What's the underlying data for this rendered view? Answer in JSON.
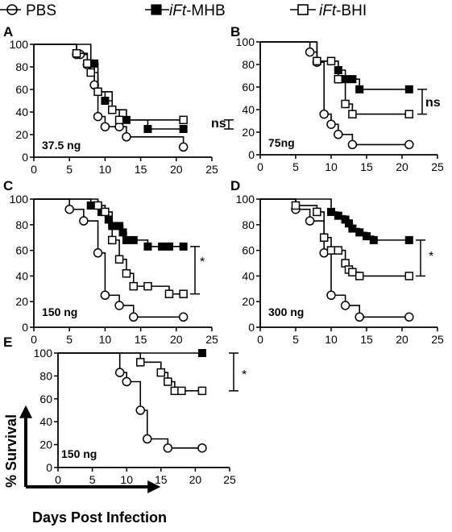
{
  "legend": [
    {
      "label": "PBS",
      "marker": "open-circle",
      "icon": "open-circle-marker-icon"
    },
    {
      "label": "iFt-MHB",
      "label_italic": "iFt",
      "label_rest": "-MHB",
      "marker": "filled-square",
      "icon": "filled-square-marker-icon"
    },
    {
      "label": "iFt-BHI",
      "label_italic": "iFt",
      "label_rest": "-BHI",
      "marker": "open-square",
      "icon": "open-square-marker-icon"
    }
  ],
  "axis_labels": {
    "y": "% Survival",
    "x": "Days Post Infection"
  },
  "colors": {
    "line": "#000000",
    "marker_fill_filled": "#000000",
    "marker_fill_open": "#ffffff"
  },
  "chart_data": [
    {
      "type": "line",
      "step": true,
      "panel": "A",
      "dose": "37.5 ng",
      "xlim": [
        0,
        25
      ],
      "ylim": [
        0,
        100
      ],
      "xticks": [
        0,
        5,
        10,
        15,
        20,
        25
      ],
      "yticks": [
        0,
        20,
        40,
        60,
        80,
        100
      ],
      "series": [
        {
          "name": "PBS",
          "marker": "open-circle",
          "x": [
            0,
            6,
            6.5,
            7.5,
            8.5,
            9,
            10,
            12,
            13,
            21
          ],
          "y": [
            100,
            91,
            91,
            82,
            64,
            36,
            27,
            27,
            18,
            9
          ]
        },
        {
          "name": "iFt-MHB",
          "marker": "filled-square",
          "x": [
            0,
            8,
            8.5,
            9,
            10,
            11,
            13,
            16,
            21
          ],
          "y": [
            100,
            83,
            83,
            58,
            50,
            42,
            33,
            25,
            25
          ]
        },
        {
          "name": "iFt-BHI",
          "marker": "open-square",
          "x": [
            0,
            6,
            7.5,
            8,
            9,
            11,
            12,
            21
          ],
          "y": [
            100,
            92,
            83,
            75,
            58,
            42,
            33,
            33
          ]
        }
      ],
      "significance": "ns"
    },
    {
      "type": "line",
      "step": true,
      "panel": "B",
      "dose": "75ng",
      "xlim": [
        0,
        25
      ],
      "ylim": [
        0,
        100
      ],
      "xticks": [
        0,
        5,
        10,
        15,
        20,
        25
      ],
      "yticks": [
        0,
        20,
        40,
        60,
        80,
        100
      ],
      "series": [
        {
          "name": "PBS",
          "marker": "open-circle",
          "x": [
            0,
            7,
            8,
            9,
            10,
            11,
            13,
            21
          ],
          "y": [
            100,
            91,
            82,
            36,
            27,
            18,
            9,
            9
          ]
        },
        {
          "name": "iFt-MHB",
          "marker": "filled-square",
          "x": [
            0,
            8,
            10,
            11,
            12,
            13,
            14,
            21
          ],
          "y": [
            100,
            83,
            83,
            75,
            67,
            67,
            58,
            58
          ]
        },
        {
          "name": "iFt-BHI",
          "marker": "open-square",
          "x": [
            0,
            8,
            10,
            11,
            12,
            13,
            21
          ],
          "y": [
            100,
            83,
            83,
            67,
            45,
            36,
            36
          ]
        }
      ],
      "significance": "ns"
    },
    {
      "type": "line",
      "step": true,
      "panel": "C",
      "dose": "150 ng",
      "xlim": [
        0,
        25
      ],
      "ylim": [
        0,
        100
      ],
      "xticks": [
        0,
        5,
        10,
        15,
        20,
        25
      ],
      "yticks": [
        0,
        20,
        40,
        60,
        80,
        100
      ],
      "series": [
        {
          "name": "PBS",
          "marker": "open-circle",
          "x": [
            0,
            5,
            7,
            9,
            10,
            12,
            14,
            21
          ],
          "y": [
            100,
            92,
            83,
            58,
            25,
            17,
            8,
            8
          ]
        },
        {
          "name": "iFt-MHB",
          "marker": "filled-square",
          "x": [
            0,
            8,
            9,
            9.5,
            10.5,
            11,
            12,
            12.5,
            13,
            14,
            16,
            18,
            19,
            21
          ],
          "y": [
            100,
            95,
            95,
            90,
            84,
            79,
            79,
            74,
            68,
            68,
            63,
            63,
            63,
            63
          ]
        },
        {
          "name": "iFt-BHI",
          "marker": "open-square",
          "x": [
            0,
            9,
            10,
            11,
            12,
            13,
            14,
            16,
            19,
            21
          ],
          "y": [
            100,
            95,
            90,
            68,
            53,
            42,
            32,
            32,
            26,
            26
          ]
        }
      ],
      "significance": "*"
    },
    {
      "type": "line",
      "step": true,
      "panel": "D",
      "dose": "300 ng",
      "xlim": [
        0,
        25
      ],
      "ylim": [
        0,
        100
      ],
      "xticks": [
        0,
        5,
        10,
        15,
        20,
        25
      ],
      "yticks": [
        0,
        20,
        40,
        60,
        80,
        100
      ],
      "series": [
        {
          "name": "PBS",
          "marker": "open-circle",
          "x": [
            0,
            5,
            7,
            9,
            10,
            12,
            14,
            21
          ],
          "y": [
            100,
            92,
            83,
            58,
            25,
            17,
            8,
            8
          ]
        },
        {
          "name": "iFt-MHB",
          "marker": "filled-square",
          "x": [
            0,
            10,
            11,
            12,
            12.5,
            13,
            14,
            15,
            16,
            21
          ],
          "y": [
            100,
            90,
            87,
            84,
            81,
            77,
            74,
            71,
            68,
            68
          ]
        },
        {
          "name": "iFt-BHI",
          "marker": "open-square",
          "x": [
            0,
            5,
            8,
            9,
            10,
            11,
            12,
            12.5,
            13,
            14,
            21
          ],
          "y": [
            100,
            95,
            90,
            70,
            60,
            60,
            50,
            45,
            43,
            40,
            40
          ]
        }
      ],
      "significance": "*"
    },
    {
      "type": "line",
      "step": true,
      "panel": "E",
      "dose": "150 ng",
      "xlim": [
        0,
        25
      ],
      "ylim": [
        0,
        100
      ],
      "xticks": [
        0,
        5,
        10,
        15,
        20,
        25
      ],
      "yticks": [
        0,
        20,
        40,
        60,
        80,
        100
      ],
      "series": [
        {
          "name": "PBS",
          "marker": "open-circle",
          "x": [
            0,
            9,
            10,
            12,
            13,
            16,
            21
          ],
          "y": [
            100,
            83,
            75,
            50,
            25,
            17,
            17
          ]
        },
        {
          "name": "iFt-MHB",
          "marker": "filled-square",
          "x": [
            0,
            21
          ],
          "y": [
            100,
            100
          ]
        },
        {
          "name": "iFt-BHI",
          "marker": "open-square",
          "x": [
            0,
            12,
            15,
            16,
            17,
            18,
            21
          ],
          "y": [
            100,
            92,
            83,
            75,
            67,
            67,
            67
          ]
        }
      ],
      "significance": "*"
    }
  ]
}
